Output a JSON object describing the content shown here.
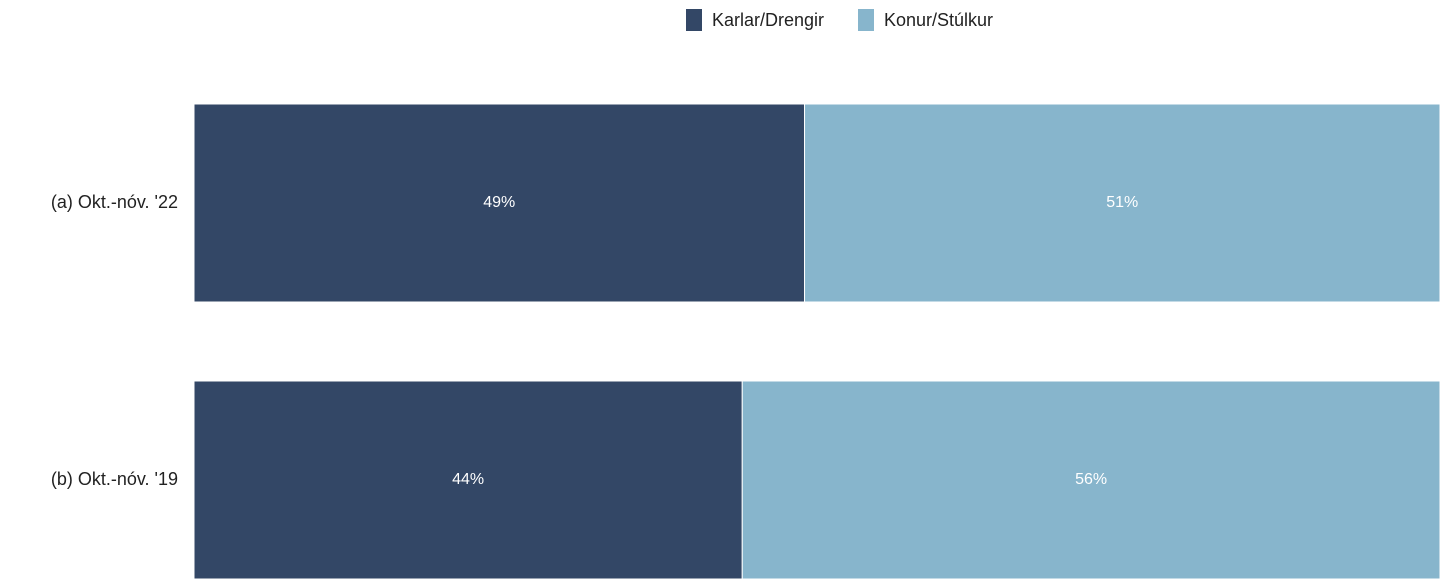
{
  "chart_data": {
    "type": "stacked-bar-horizontal",
    "categories": [
      "(a) Okt.-nóv. '22",
      "(b) Okt.-nóv. '19"
    ],
    "series": [
      {
        "name": "Karlar/Drengir",
        "color": "#334766",
        "values": [
          49,
          44
        ],
        "value_labels": [
          "49%",
          "44%"
        ]
      },
      {
        "name": "Konur/Stúlkur",
        "color": "#87b5cc",
        "values": [
          51,
          56
        ],
        "value_labels": [
          "51%",
          "56%"
        ]
      }
    ],
    "xlim": [
      0,
      100
    ],
    "legend": "top"
  }
}
